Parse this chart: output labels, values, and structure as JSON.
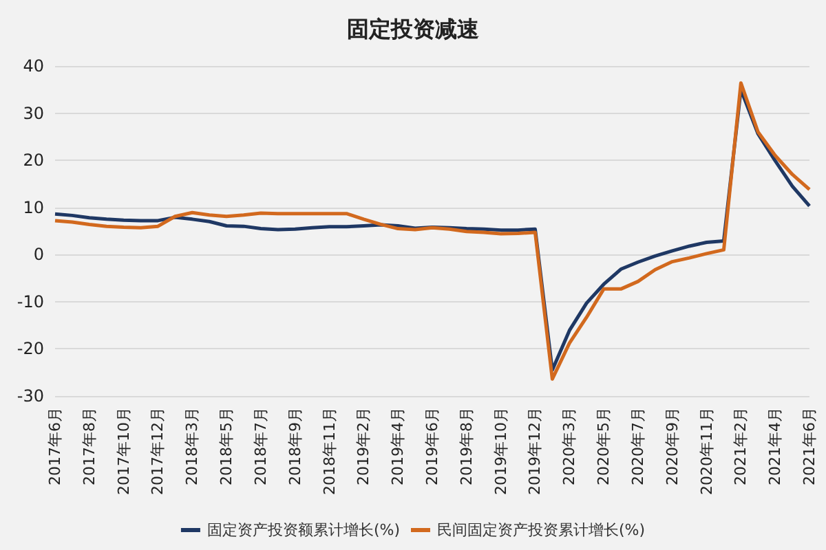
{
  "chart_data": {
    "type": "line",
    "title": "固定投资减速",
    "categories": [
      "2017年6月",
      null,
      "2017年8月",
      null,
      "2017年10月",
      null,
      "2017年12月",
      null,
      "2018年3月",
      null,
      "2018年5月",
      null,
      "2018年7月",
      null,
      "2018年9月",
      null,
      "2018年11月",
      null,
      "2019年2月",
      null,
      "2019年4月",
      null,
      "2019年6月",
      null,
      "2019年8月",
      null,
      "2019年10月",
      null,
      "2019年12月",
      null,
      "2020年3月",
      null,
      "2020年5月",
      null,
      "2020年7月",
      null,
      "2020年9月",
      null,
      "2020年11月",
      null,
      "2021年2月",
      null,
      "2021年4月",
      null,
      "2021年6月"
    ],
    "series": [
      {
        "name": "固定资产投资额累计增长(%)",
        "color": "#1f3864",
        "values": [
          8.6,
          8.3,
          7.8,
          7.5,
          7.3,
          7.2,
          7.2,
          7.9,
          7.5,
          7.0,
          6.1,
          6.0,
          5.5,
          5.3,
          5.4,
          5.7,
          5.9,
          5.9,
          6.1,
          6.3,
          6.1,
          5.6,
          5.8,
          5.7,
          5.5,
          5.4,
          5.2,
          5.2,
          5.4,
          -24.5,
          -16.1,
          -10.3,
          -6.3,
          -3.1,
          -1.6,
          -0.3,
          0.8,
          1.8,
          2.6,
          2.9,
          35.0,
          25.6,
          19.9,
          14.5,
          10.3
        ]
      },
      {
        "name": "民间固定资产投资累计增长(%)",
        "color": "#d2691e",
        "values": [
          7.2,
          6.9,
          6.4,
          6.0,
          5.8,
          5.7,
          6.0,
          8.1,
          8.9,
          8.4,
          8.1,
          8.4,
          8.8,
          8.7,
          8.7,
          8.7,
          8.7,
          8.7,
          7.5,
          6.4,
          5.5,
          5.3,
          5.7,
          5.4,
          4.9,
          4.7,
          4.4,
          4.5,
          4.7,
          -26.4,
          -18.8,
          -13.3,
          -7.3,
          -7.3,
          -5.7,
          -3.2,
          -1.5,
          -0.7,
          0.2,
          1.0,
          36.4,
          26.0,
          21.0,
          17.0,
          13.8
        ]
      }
    ],
    "ylim": [
      -30,
      40
    ],
    "yticks": [
      -30,
      -20,
      -10,
      0,
      10,
      20,
      30,
      40
    ],
    "grid": "y",
    "legend": "bottom",
    "marker": "none",
    "line_style": "solid"
  }
}
